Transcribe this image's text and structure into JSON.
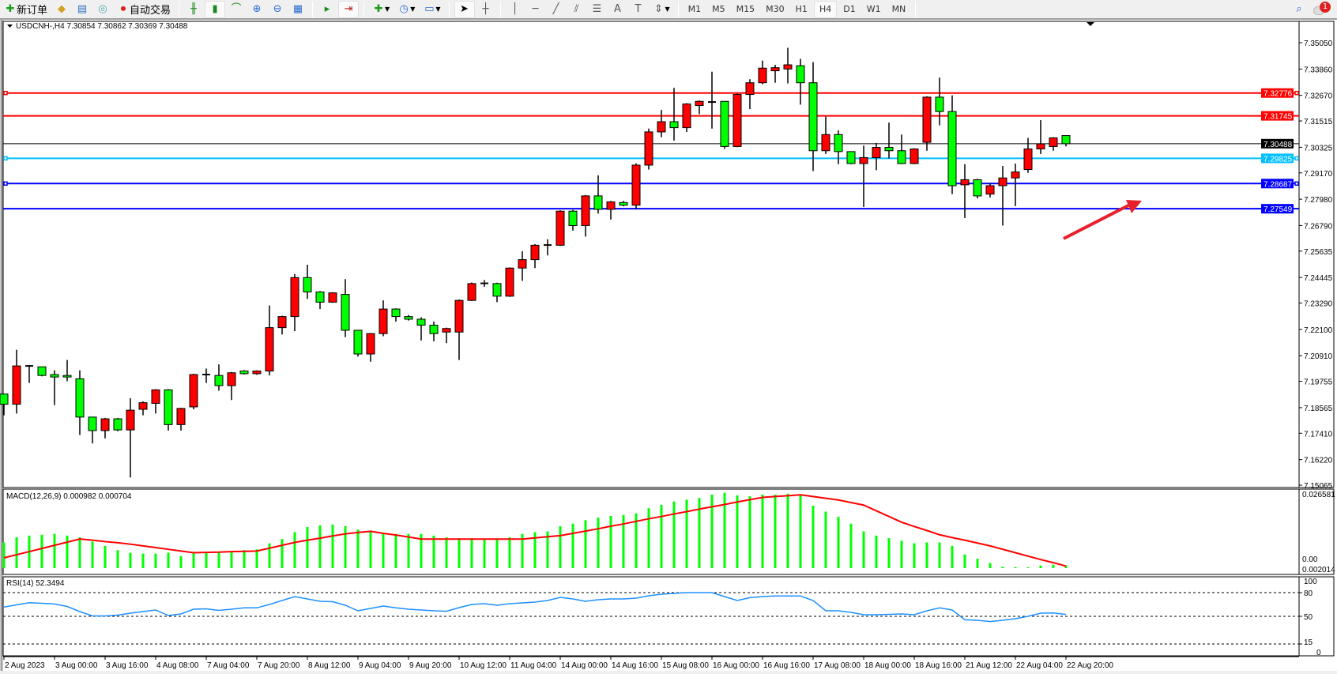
{
  "toolbar": {
    "new_order": "新订单",
    "auto_trading": "自动交易",
    "timeframes": [
      "M1",
      "M5",
      "M15",
      "M30",
      "H1",
      "H4",
      "D1",
      "W1",
      "MN"
    ],
    "active_timeframe": "H4",
    "notification_count": "1"
  },
  "chart": {
    "header": "USDCNH-,H4  7.30854 7.30862 7.30369 7.30488",
    "symbol": "USDCNH-",
    "timeframe": "H4",
    "up_color": "#ff0000",
    "down_color": "#00ff00",
    "price_ticks": [
      "7.35050",
      "7.33860",
      "7.32670",
      "7.31515",
      "7.30325",
      "7.29170",
      "7.27980",
      "7.26790",
      "7.25635",
      "7.24445",
      "7.23290",
      "7.22100",
      "7.20910",
      "7.19755",
      "7.18565",
      "7.17410",
      "7.16220",
      "7.15065"
    ],
    "horizontal_lines": [
      {
        "price": "7.32776",
        "color": "#ff0000"
      },
      {
        "price": "7.31745",
        "color": "#ff0000"
      },
      {
        "price": "7.30488",
        "color": "#000000"
      },
      {
        "price": "7.29825",
        "color": "#00bfff"
      },
      {
        "price": "7.28687",
        "color": "#0000ff"
      },
      {
        "price": "7.27549",
        "color": "#0000ff"
      }
    ],
    "annotation_arrow_color": "#e8202a",
    "time_labels": [
      "2 Aug 2023",
      "3 Aug 00:00",
      "3 Aug 16:00",
      "4 Aug 08:00",
      "7 Aug 04:00",
      "7 Aug 20:00",
      "8 Aug 12:00",
      "9 Aug 04:00",
      "9 Aug 20:00",
      "10 Aug 12:00",
      "11 Aug 04:00",
      "14 Aug 00:00",
      "14 Aug 16:00",
      "15 Aug 08:00",
      "16 Aug 00:00",
      "16 Aug 16:00",
      "17 Aug 08:00",
      "18 Aug 00:00",
      "18 Aug 16:00",
      "21 Aug 12:00",
      "22 Aug 04:00",
      "22 Aug 20:00"
    ],
    "candles_ohlc": [
      [
        7.1918,
        7.1918,
        7.1822,
        7.1872
      ],
      [
        7.1872,
        7.2118,
        7.183,
        7.2045
      ],
      [
        7.2045,
        7.2045,
        7.1968,
        7.2045
      ],
      [
        7.2041,
        7.2041,
        7.1998,
        7.2002
      ],
      [
        7.2006,
        7.2025,
        7.1868,
        7.1995
      ],
      [
        7.2002,
        7.2072,
        7.1976,
        7.1995
      ],
      [
        7.1987,
        7.2025,
        7.1733,
        7.1814
      ],
      [
        7.1814,
        7.1814,
        7.1695,
        7.1753
      ],
      [
        7.1753,
        7.181,
        7.1718,
        7.1806
      ],
      [
        7.1806,
        7.181,
        7.175,
        7.1756
      ],
      [
        7.1756,
        7.1899,
        7.1541,
        7.1845
      ],
      [
        7.1849,
        7.1885,
        7.1822,
        7.1879
      ],
      [
        7.1876,
        7.194,
        7.183,
        7.1937
      ],
      [
        7.1937,
        7.194,
        7.1753,
        7.178
      ],
      [
        7.178,
        7.1856,
        7.1753,
        7.1853
      ],
      [
        7.186,
        7.201,
        7.1849,
        7.2006
      ],
      [
        7.2006,
        7.2033,
        7.1968,
        7.2004
      ],
      [
        7.2002,
        7.2052,
        7.1933,
        7.1956
      ],
      [
        7.1956,
        7.2018,
        7.1891,
        7.2014
      ],
      [
        7.2022,
        7.2026,
        7.2006,
        7.201
      ],
      [
        7.201,
        7.2025,
        7.2005,
        7.2022
      ],
      [
        7.2022,
        7.2318,
        7.2002,
        7.2218
      ],
      [
        7.2218,
        7.2272,
        7.2187,
        7.2268
      ],
      [
        7.2268,
        7.246,
        7.2202,
        7.2444
      ],
      [
        7.2444,
        7.2502,
        7.2348,
        7.2379
      ],
      [
        7.2379,
        7.2383,
        7.2302,
        7.2333
      ],
      [
        7.2333,
        7.2378,
        7.233,
        7.2375
      ],
      [
        7.2368,
        7.2437,
        7.2175,
        7.2206
      ],
      [
        7.2206,
        7.2206,
        7.2087,
        7.2099
      ],
      [
        7.2099,
        7.2194,
        7.2064,
        7.2191
      ],
      [
        7.2191,
        7.2341,
        7.2179,
        7.2302
      ],
      [
        7.2302,
        7.2305,
        7.2245,
        7.2268
      ],
      [
        7.2268,
        7.2275,
        7.225,
        7.2256
      ],
      [
        7.2256,
        7.2265,
        7.216,
        7.2229
      ],
      [
        7.2229,
        7.2245,
        7.2156,
        7.2191
      ],
      [
        7.2198,
        7.2218,
        7.2148,
        7.2214
      ],
      [
        7.2198,
        7.2345,
        7.2072,
        7.2341
      ],
      [
        7.2341,
        7.2422,
        7.2338,
        7.2417
      ],
      [
        7.2417,
        7.2433,
        7.2402,
        7.2418
      ],
      [
        7.2417,
        7.2421,
        7.2333,
        7.236
      ],
      [
        7.236,
        7.249,
        7.2357,
        7.2487
      ],
      [
        7.2487,
        7.2563,
        7.2429,
        7.2525
      ],
      [
        7.2525,
        7.2595,
        7.2487,
        7.259
      ],
      [
        7.259,
        7.2617,
        7.2544,
        7.2591
      ],
      [
        7.259,
        7.2748,
        7.2587,
        7.2744
      ],
      [
        7.2744,
        7.275,
        7.2656,
        7.2679
      ],
      [
        7.2679,
        7.2817,
        7.2629,
        7.2813
      ],
      [
        7.2813,
        7.2906,
        7.2733,
        7.2752
      ],
      [
        7.2752,
        7.279,
        7.2706,
        7.2786
      ],
      [
        7.2783,
        7.279,
        7.2766,
        7.2771
      ],
      [
        7.2771,
        7.296,
        7.2752,
        7.2952
      ],
      [
        7.2952,
        7.3117,
        7.2932,
        7.3102
      ],
      [
        7.3102,
        7.3201,
        7.3078,
        7.3148
      ],
      [
        7.3148,
        7.3301,
        7.3063,
        7.3121
      ],
      [
        7.3121,
        7.3232,
        7.3102,
        7.3228
      ],
      [
        7.3221,
        7.3244,
        7.3182,
        7.324
      ],
      [
        7.3236,
        7.3374,
        7.3117,
        7.3237
      ],
      [
        7.324,
        7.324,
        7.3025,
        7.3036
      ],
      [
        7.3036,
        7.3275,
        7.3033,
        7.3271
      ],
      [
        7.3271,
        7.334,
        7.3205,
        7.3324
      ],
      [
        7.3324,
        7.3424,
        7.3317,
        7.339
      ],
      [
        7.3378,
        7.3405,
        7.3324,
        7.3392
      ],
      [
        7.3386,
        7.3482,
        7.3321,
        7.3405
      ],
      [
        7.3401,
        7.3432,
        7.3225,
        7.3324
      ],
      [
        7.3324,
        7.3417,
        7.2925,
        7.3017
      ],
      [
        7.3017,
        7.3171,
        7.3002,
        7.309
      ],
      [
        7.309,
        7.3109,
        7.2956,
        7.3013
      ],
      [
        7.3013,
        7.3013,
        7.2956,
        7.2959
      ],
      [
        7.2959,
        7.304,
        7.2763,
        7.2986
      ],
      [
        7.2986,
        7.3052,
        7.2929,
        7.3032
      ],
      [
        7.3032,
        7.3144,
        7.2982,
        7.3017
      ],
      [
        7.3017,
        7.309,
        7.2956,
        7.2959
      ],
      [
        7.2959,
        7.3028,
        7.2956,
        7.3025
      ],
      [
        7.3055,
        7.3263,
        7.3017,
        7.3259
      ],
      [
        7.3259,
        7.3347,
        7.3132,
        7.3194
      ],
      [
        7.3194,
        7.3267,
        7.2821,
        7.2859
      ],
      [
        7.2863,
        7.2956,
        7.2713,
        7.2886
      ],
      [
        7.2886,
        7.289,
        7.2802,
        7.2813
      ],
      [
        7.2821,
        7.2871,
        7.2806,
        7.2859
      ],
      [
        7.2859,
        7.2948,
        7.2679,
        7.2894
      ],
      [
        7.2894,
        7.2959,
        7.2767,
        7.2921
      ],
      [
        7.2932,
        7.3075,
        7.2917,
        7.3025
      ],
      [
        7.3025,
        7.3155,
        7.3002,
        7.3048
      ],
      [
        7.3036,
        7.3078,
        7.3017,
        7.3075
      ],
      [
        7.30854,
        7.30862,
        7.30369,
        7.30488
      ]
    ]
  },
  "macd": {
    "label": "MACD(12,26,9) 0.000982 0.000704",
    "axis_labels": [
      "0.026581",
      "0.00",
      "0.002014"
    ],
    "histogram_color": "#00ff00",
    "signal_color": "#ff0000",
    "histogram": [
      0.009,
      0.0108,
      0.0114,
      0.0117,
      0.012,
      0.0114,
      0.0108,
      0.0093,
      0.0078,
      0.0063,
      0.0054,
      0.0051,
      0.0051,
      0.0054,
      0.0042,
      0.0054,
      0.0054,
      0.0057,
      0.0057,
      0.0063,
      0.0066,
      0.0087,
      0.0102,
      0.0126,
      0.0144,
      0.015,
      0.0153,
      0.0147,
      0.0135,
      0.0126,
      0.0123,
      0.012,
      0.012,
      0.012,
      0.0114,
      0.0108,
      0.0105,
      0.0105,
      0.0102,
      0.0102,
      0.0108,
      0.012,
      0.0126,
      0.0129,
      0.0147,
      0.0156,
      0.0168,
      0.0177,
      0.0183,
      0.0186,
      0.0192,
      0.021,
      0.0222,
      0.0234,
      0.024,
      0.0246,
      0.0258,
      0.0264,
      0.0255,
      0.0252,
      0.0258,
      0.0258,
      0.0261,
      0.0255,
      0.0219,
      0.0198,
      0.018,
      0.0156,
      0.0129,
      0.0114,
      0.0105,
      0.0096,
      0.0087,
      0.009,
      0.009,
      0.0078,
      0.0048,
      0.0033,
      0.0018,
      0.0005,
      0.0004,
      0.0003,
      0.0009,
      0.0012,
      0.000982
    ],
    "signal": [
      0.0036,
      0.0047,
      0.0058,
      0.0069,
      0.008,
      0.0091,
      0.0102,
      0.0098,
      0.0093,
      0.0089,
      0.0084,
      0.0078,
      0.0072,
      0.0066,
      0.006,
      0.0054,
      0.0055,
      0.0056,
      0.0058,
      0.0059,
      0.006,
      0.007,
      0.008,
      0.009,
      0.0098,
      0.0105,
      0.0113,
      0.012,
      0.0125,
      0.0129,
      0.0122,
      0.0116,
      0.0109,
      0.0102,
      0.0102,
      0.0102,
      0.0102,
      0.0102,
      0.0102,
      0.0102,
      0.0102,
      0.0102,
      0.0106,
      0.011,
      0.0114,
      0.0122,
      0.013,
      0.0138,
      0.0147,
      0.0155,
      0.0164,
      0.0173,
      0.0181,
      0.019,
      0.0198,
      0.0207,
      0.0215,
      0.0223,
      0.0232,
      0.024,
      0.0248,
      0.0251,
      0.0254,
      0.0257,
      0.0251,
      0.0245,
      0.0239,
      0.023,
      0.0221,
      0.0201,
      0.0181,
      0.0161,
      0.0146,
      0.0132,
      0.0117,
      0.0107,
      0.0098,
      0.0088,
      0.0078,
      0.0066,
      0.0054,
      0.0042,
      0.003,
      0.0019,
      0.000704
    ]
  },
  "rsi": {
    "label": "RSI(14) 52.3494",
    "levels": [
      "100",
      "80",
      "50",
      "15",
      "0"
    ],
    "line_color": "#1e90ff",
    "values": [
      61.8,
      64.5,
      67.2,
      66.5,
      65.6,
      62.5,
      56,
      50.5,
      50.5,
      51.5,
      54,
      56,
      58,
      51,
      53,
      59,
      59.5,
      57.5,
      59,
      60.7,
      60.7,
      65,
      70,
      75,
      72,
      69,
      68.5,
      64,
      57,
      60,
      63,
      60.7,
      59,
      58,
      57,
      56.4,
      61,
      65,
      66,
      64,
      66,
      67,
      68,
      70,
      74,
      72,
      69,
      71,
      72,
      72,
      73,
      76,
      78,
      79,
      80,
      80,
      80,
      75,
      70,
      73.6,
      75,
      75.8,
      75.8,
      75.8,
      70,
      57,
      57,
      55,
      52,
      52,
      52.5,
      53,
      52,
      57,
      60.7,
      58,
      45.6,
      45,
      43.4,
      45,
      47,
      50,
      54,
      54.2,
      52.3494
    ]
  }
}
